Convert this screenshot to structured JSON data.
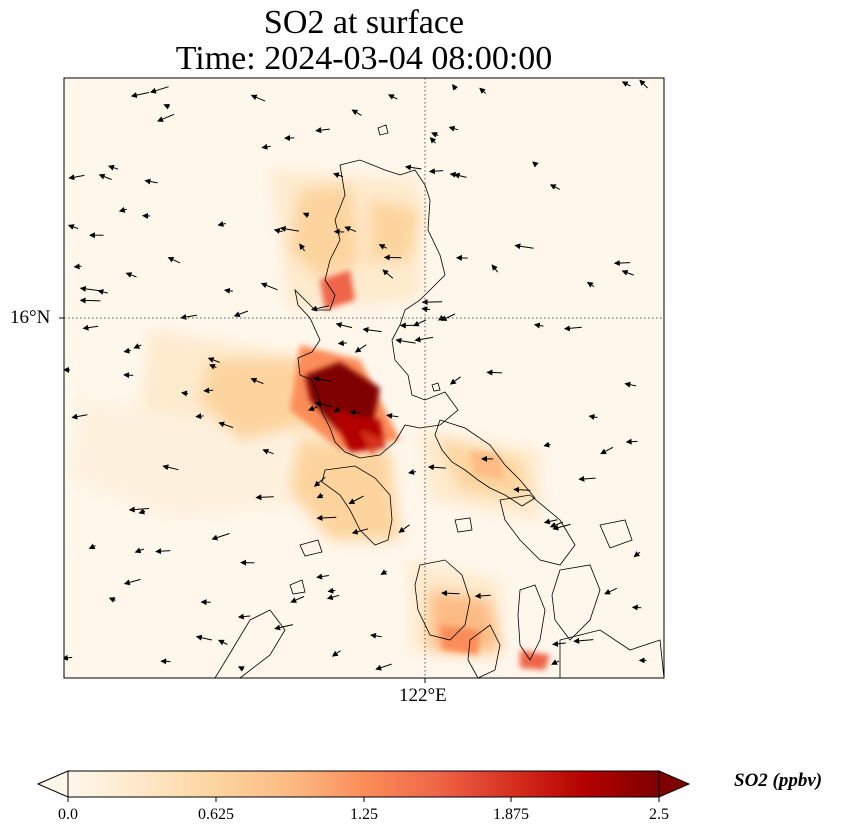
{
  "title": {
    "line1": "SO2 at surface",
    "line2": "Time: 2024-03-04 08:00:00"
  },
  "axes": {
    "lat_tick": "16°N",
    "lon_tick": "122°E"
  },
  "colorbar": {
    "label": "SO2 (ppbv)",
    "ticks": [
      "0.0",
      "0.625",
      "1.25",
      "1.875",
      "2.5"
    ],
    "range": [
      0.0,
      2.5
    ],
    "colormap": "OrRd",
    "colors": [
      "#fff7ec",
      "#fee8c8",
      "#fdd49e",
      "#fdbb84",
      "#fc8d59",
      "#ef6548",
      "#d7301f",
      "#b30000",
      "#7f0000"
    ],
    "extend": "both"
  },
  "chart_data": {
    "type": "heatmap",
    "title": "SO2 at surface",
    "subtitle": "Time: 2024-03-04 08:00:00",
    "variable": "SO2",
    "units": "ppbv",
    "gridlines": {
      "lat": [
        "16°N"
      ],
      "lon": [
        "122°E"
      ],
      "style": "dotted"
    },
    "overlay": "wind vectors",
    "coastlines": true
  }
}
